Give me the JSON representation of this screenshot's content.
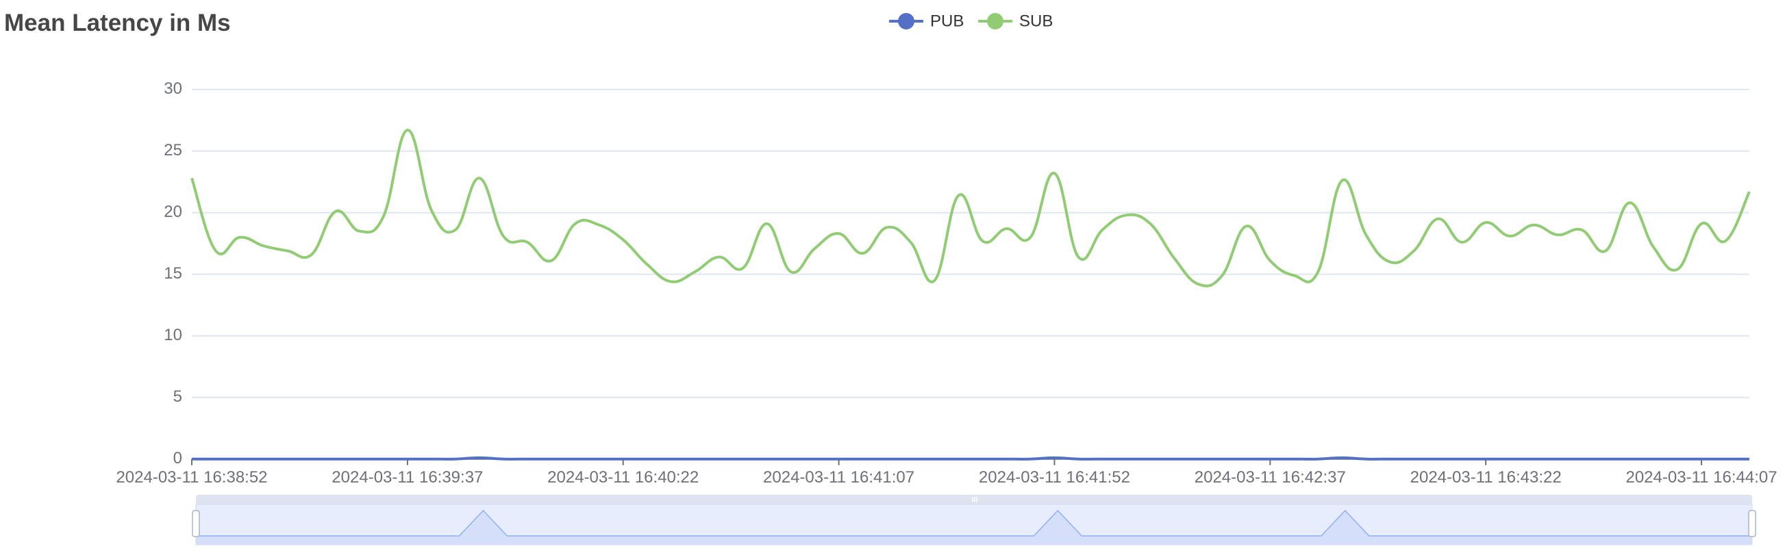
{
  "chart_data": {
    "type": "line",
    "title": "Mean Latency in Ms",
    "xlabel": "",
    "ylabel": "",
    "x_unit": "seconds since 2024-03-11 16:38:52",
    "x_range": [
      0,
      325
    ],
    "ylim": [
      0,
      30
    ],
    "y_ticks": [
      0,
      5,
      10,
      15,
      20,
      25,
      30
    ],
    "x_tick_labels": [
      {
        "t": 0,
        "label": "2024-03-11 16:38:52"
      },
      {
        "t": 45,
        "label": "2024-03-11 16:39:37"
      },
      {
        "t": 90,
        "label": "2024-03-11 16:40:22"
      },
      {
        "t": 135,
        "label": "2024-03-11 16:41:07"
      },
      {
        "t": 180,
        "label": "2024-03-11 16:41:52"
      },
      {
        "t": 225,
        "label": "2024-03-11 16:42:37"
      },
      {
        "t": 270,
        "label": "2024-03-11 16:43:22"
      },
      {
        "t": 315,
        "label": "2024-03-11 16:44:07"
      }
    ],
    "grid": true,
    "smooth": true,
    "legend_position": "top-center",
    "x": [
      0,
      5,
      10,
      15,
      20,
      25,
      30,
      35,
      40,
      45,
      50,
      55,
      60,
      65,
      70,
      75,
      80,
      85,
      90,
      95,
      100,
      105,
      110,
      115,
      120,
      125,
      130,
      135,
      140,
      145,
      150,
      155,
      160,
      165,
      170,
      175,
      180,
      185,
      190,
      195,
      200,
      205,
      210,
      215,
      220,
      225,
      230,
      235,
      240,
      245,
      250,
      255,
      260,
      265,
      270,
      275,
      280,
      285,
      290,
      295,
      300,
      305,
      310,
      315,
      320,
      325
    ],
    "series": [
      {
        "name": "PUB",
        "color": "#5470c6",
        "values": [
          0,
          0,
          0,
          0,
          0,
          0,
          0,
          0,
          0,
          0,
          0,
          0,
          0.1,
          0,
          0,
          0,
          0,
          0,
          0,
          0,
          0,
          0,
          0,
          0,
          0,
          0,
          0,
          0,
          0,
          0,
          0,
          0,
          0,
          0,
          0,
          0,
          0.1,
          0,
          0,
          0,
          0,
          0,
          0,
          0,
          0,
          0,
          0,
          0,
          0.1,
          0,
          0,
          0,
          0,
          0,
          0,
          0,
          0,
          0,
          0,
          0,
          0,
          0,
          0,
          0,
          0,
          0
        ]
      },
      {
        "name": "SUB",
        "color": "#91cc75",
        "values": [
          22.8,
          16.9,
          18.0,
          17.3,
          16.9,
          16.6,
          20.1,
          18.5,
          19.7,
          26.7,
          20.2,
          18.6,
          22.8,
          18.1,
          17.6,
          16.1,
          19.1,
          19.0,
          17.8,
          15.8,
          14.4,
          15.2,
          16.4,
          15.5,
          19.1,
          15.2,
          17.1,
          18.3,
          16.7,
          18.8,
          17.6,
          14.5,
          21.4,
          17.7,
          18.7,
          18.0,
          23.2,
          16.4,
          18.6,
          19.8,
          19.1,
          16.3,
          14.2,
          14.9,
          18.9,
          16.1,
          14.9,
          15.2,
          22.6,
          18.2,
          16.0,
          16.9,
          19.5,
          17.6,
          19.2,
          18.1,
          19.0,
          18.2,
          18.6,
          16.9,
          20.8,
          17.2,
          15.4,
          19.1,
          17.7,
          21.7
        ]
      }
    ],
    "data_zoom": {
      "start_percent": 0,
      "end_percent": 100
    }
  }
}
